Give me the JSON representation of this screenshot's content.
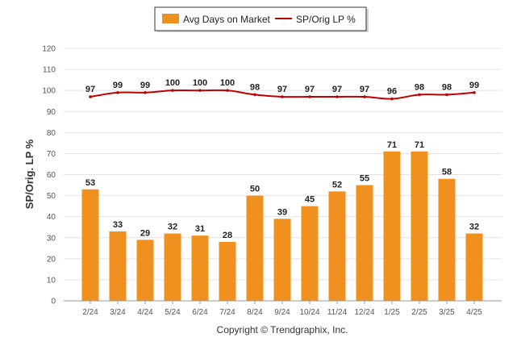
{
  "chart_data": {
    "type": "bar",
    "title": "",
    "xlabel": "",
    "ylabel": "SP/Orig. LP %",
    "ylim": [
      0,
      120
    ],
    "yticks": [
      0,
      10,
      20,
      30,
      40,
      50,
      60,
      70,
      80,
      90,
      100,
      110,
      120
    ],
    "grid": true,
    "legend_position": "top-center",
    "categories": [
      "2/24",
      "3/24",
      "4/24",
      "5/24",
      "6/24",
      "7/24",
      "8/24",
      "9/24",
      "10/24",
      "11/24",
      "12/24",
      "1/25",
      "2/25",
      "3/25",
      "4/25"
    ],
    "series": [
      {
        "name": "Avg Days on Market",
        "type": "bar",
        "color": "#F0901E",
        "values": [
          53,
          33,
          29,
          32,
          31,
          28,
          50,
          39,
          45,
          52,
          55,
          71,
          71,
          58,
          32
        ]
      },
      {
        "name": "SP/Orig LP %",
        "type": "line",
        "color": "#C00000",
        "values": [
          97,
          99,
          99,
          100,
          100,
          100,
          98,
          97,
          97,
          97,
          97,
          96,
          98,
          98,
          99
        ]
      }
    ]
  },
  "footer": {
    "copyright": "Copyright © Trendgraphix, Inc."
  }
}
